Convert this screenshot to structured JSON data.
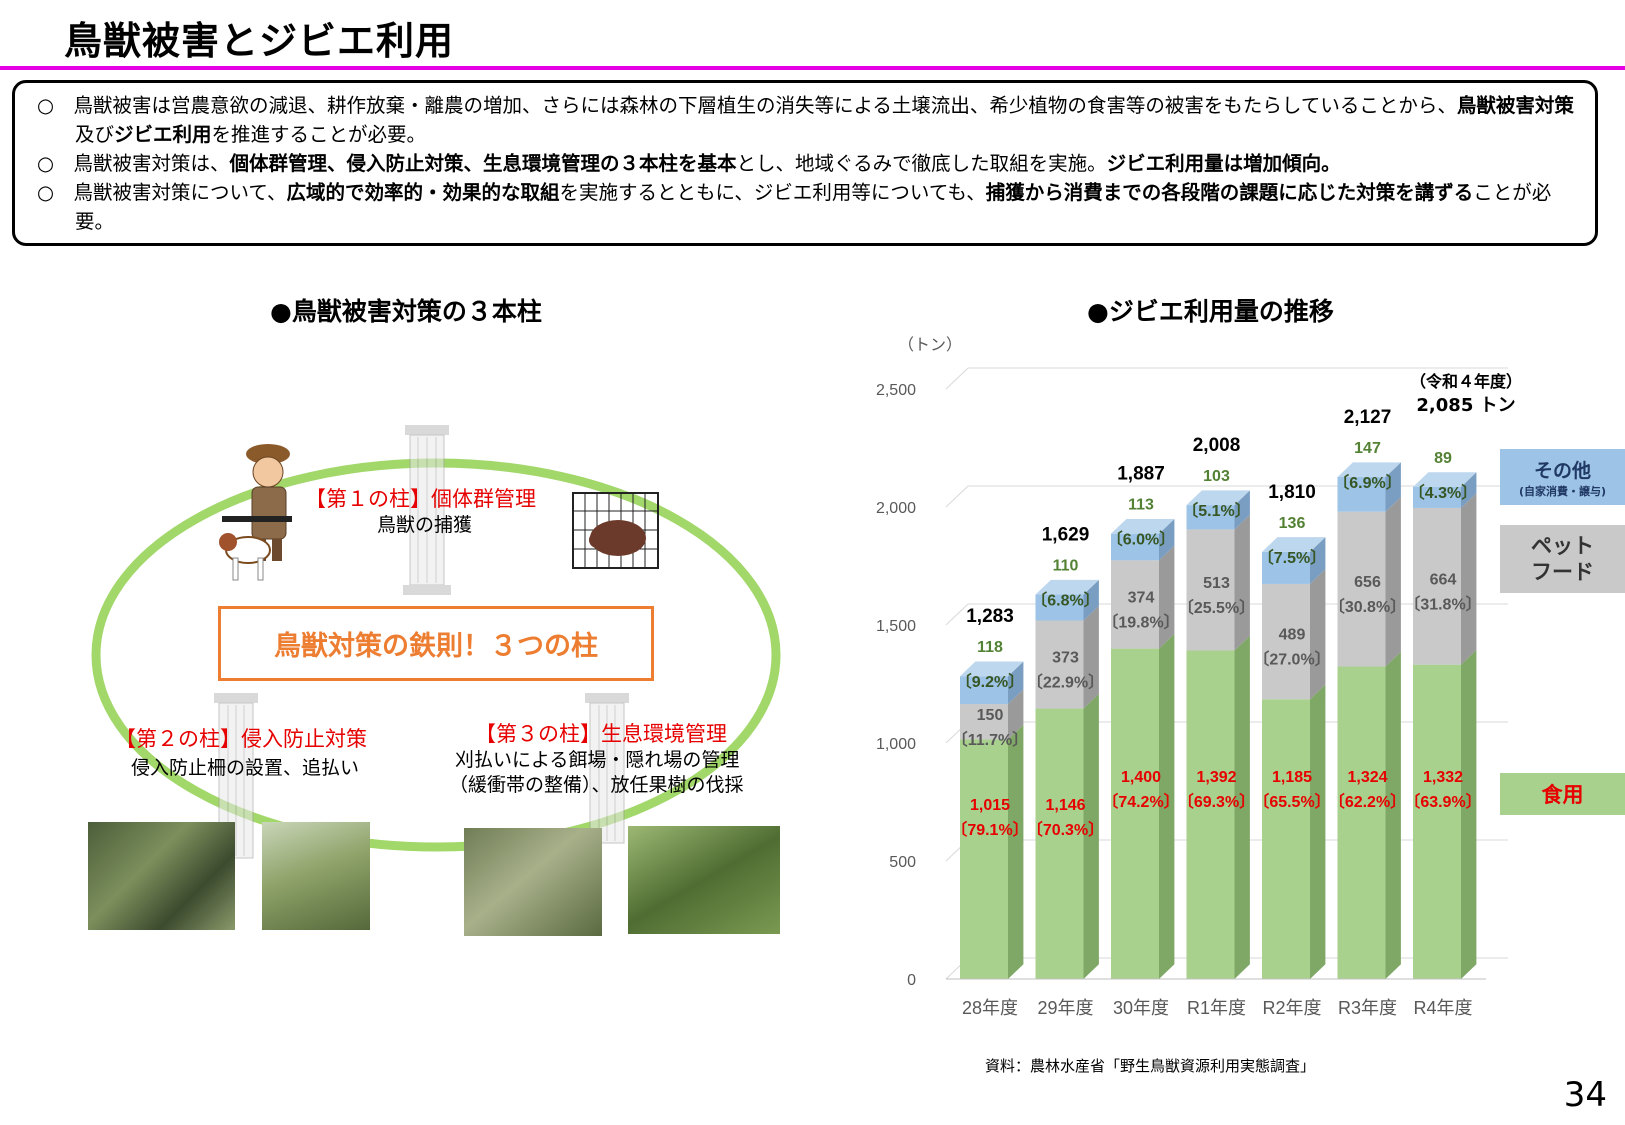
{
  "page": {
    "title": "鳥獣被害とジビエ利用",
    "page_number": "34",
    "source": "資料：農林水産省「野生鳥獣資源利用実態調査」"
  },
  "summary": [
    {
      "bullet": "○",
      "parts": [
        {
          "t": "鳥獣被害は営農意欲の減退、耕作放棄・離農の増加、さらには森林の下層植生の消失等による土壌流出、希少植物の食害等の被害をもたらしていることから、",
          "b": false
        },
        {
          "t": "鳥獣被害対策",
          "b": true
        },
        {
          "t": "及び",
          "b": false
        },
        {
          "t": "ジビエ利用",
          "b": true
        },
        {
          "t": "を推進することが必要。",
          "b": false
        }
      ]
    },
    {
      "bullet": "○",
      "parts": [
        {
          "t": "鳥獣被害対策は、",
          "b": false
        },
        {
          "t": "個体群管理、侵入防止対策、生息環境管理の３本柱を基本",
          "b": true
        },
        {
          "t": "とし、地域ぐるみで徹底した取組を実施。",
          "b": false
        },
        {
          "t": "ジビエ利用量は増加傾向。",
          "b": true
        }
      ]
    },
    {
      "bullet": "○",
      "parts": [
        {
          "t": "鳥獣被害対策について、",
          "b": false
        },
        {
          "t": "広域的で効率的・効果的な取組",
          "b": true
        },
        {
          "t": "を実施するとともに、ジビエ利用等についても、",
          "b": false
        },
        {
          "t": "捕獲から消費までの各段階の課題に応じた対策を講ずる",
          "b": true
        },
        {
          "t": "ことが必要。",
          "b": false
        }
      ]
    }
  ],
  "diagram": {
    "section_title": "●鳥獣被害対策の３本柱",
    "core": "鳥獣対策の鉄則！３つの柱",
    "pillar1": {
      "title": "【第１の柱】個体群管理",
      "desc": "鳥獣の捕獲"
    },
    "pillar2": {
      "title": "【第２の柱】侵入防止対策",
      "desc": "侵入防止柵の設置、追払い"
    },
    "pillar3": {
      "title": "【第３の柱】生息環境管理",
      "desc1": "刈払いによる餌場・隠れ場の管理",
      "desc2": "（緩衝帯の整備）、放任果樹の伐採"
    }
  },
  "chart_section_title": "●ジビエ利用量の推移",
  "legend": {
    "other": {
      "label": "その他",
      "sub": "(自家消費・譲与)",
      "color": "#9dc3e6"
    },
    "pet": {
      "label1": "ペット",
      "label2": "フード",
      "color": "#c9c9c9"
    },
    "food": {
      "label": "食用",
      "color": "#a9d18e"
    }
  },
  "latest_note": {
    "line1": "（令和４年度）",
    "line2": "2,085 トン"
  },
  "chart_data": {
    "type": "bar",
    "stacked": true,
    "unit_label": "（トン）",
    "ylim": [
      0,
      2500
    ],
    "yticks": [
      "0",
      "500",
      "1,000",
      "1,500",
      "2,000",
      "2,500"
    ],
    "ytick_values": [
      0,
      500,
      1000,
      1500,
      2000,
      2500
    ],
    "categories": [
      "28年度",
      "29年度",
      "30年度",
      "R1年度",
      "R2年度",
      "R3年度",
      "R4年度"
    ],
    "totals": [
      1283,
      1629,
      1887,
      2008,
      1810,
      2127,
      2085
    ],
    "total_labels": [
      "1,283",
      "1,629",
      "1,887",
      "2,008",
      "1,810",
      "2,127",
      ""
    ],
    "series": [
      {
        "name": "食用",
        "color": "#a9d18e",
        "values": [
          1015,
          1146,
          1400,
          1392,
          1185,
          1324,
          1332
        ],
        "labels": [
          "1,015",
          "1,146",
          "1,400",
          "1,392",
          "1,185",
          "1,324",
          "1,332"
        ],
        "pcts": [
          "〔79.1%〕",
          "〔70.3%〕",
          "〔74.2%〕",
          "〔69.3%〕",
          "〔65.5%〕",
          "〔62.2%〕",
          "〔63.9%〕"
        ]
      },
      {
        "name": "ペットフード",
        "color": "#c9c9c9",
        "values": [
          150,
          373,
          374,
          513,
          489,
          656,
          664
        ],
        "labels": [
          "150",
          "373",
          "374",
          "513",
          "489",
          "656",
          "664"
        ],
        "pcts": [
          "〔11.7%〕",
          "〔22.9%〕",
          "〔19.8%〕",
          "〔25.5%〕",
          "〔27.0%〕",
          "〔30.8%〕",
          "〔31.8%〕"
        ]
      },
      {
        "name": "その他",
        "color": "#9dc3e6",
        "values": [
          118,
          110,
          113,
          103,
          136,
          147,
          89
        ],
        "labels": [
          "118",
          "110",
          "113",
          "103",
          "136",
          "147",
          "89"
        ],
        "pcts": [
          "〔9.2%〕",
          "〔6.8%〕",
          "〔6.0%〕",
          "〔5.1%〕",
          "〔7.5%〕",
          "〔6.9%〕",
          "〔4.3%〕"
        ]
      }
    ]
  }
}
